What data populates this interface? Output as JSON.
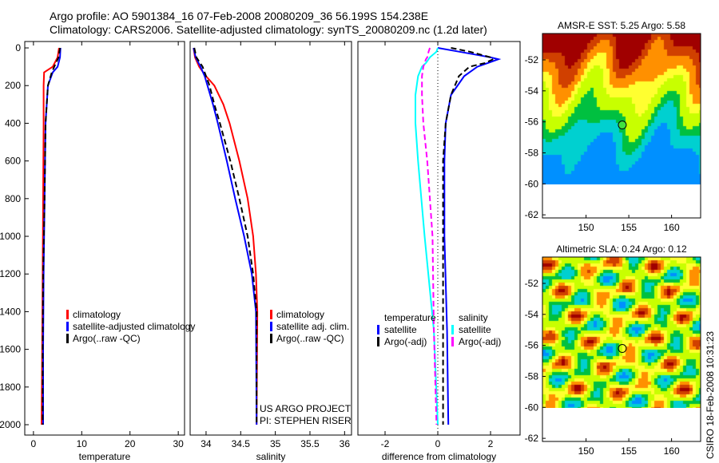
{
  "header": {
    "line1": "Argo profile: AO 5901384_16 07-Feb-2008 20080209_36 56.199S 154.238E",
    "line2": "Climatology: CARS2006. Satellite-adjusted climatology: synTS_20080209.nc (1.2d later)"
  },
  "footer": {
    "stamp": "CSIRO 18-Feb-2008 10:31:23",
    "project": "US ARGO PROJECT",
    "pi": "PI: STEPHEN RISER"
  },
  "chart_data": [
    {
      "type": "line",
      "id": "temp",
      "xlabel": "temperature",
      "xlim": [
        -1.8,
        31.3
      ],
      "ylim": [
        2055,
        -34
      ],
      "xticks": [
        0,
        10,
        20,
        30
      ],
      "yticks": [
        0,
        200,
        400,
        600,
        800,
        1000,
        1200,
        1400,
        1600,
        1800,
        2000
      ],
      "depth": [
        0,
        50,
        100,
        130,
        200,
        400,
        800,
        1200,
        1600,
        2000
      ],
      "series": [
        {
          "name": "climatology",
          "color": "#ff0000",
          "values": [
            5.3,
            5.0,
            4.0,
            2.2,
            2.1,
            2.1,
            2.0,
            1.9,
            1.8,
            1.7
          ]
        },
        {
          "name": "satellite-adjusted climatology",
          "color": "#0000ff",
          "values": [
            5.6,
            5.5,
            5.0,
            4.0,
            3.0,
            2.5,
            2.3,
            2.1,
            2.0,
            2.0
          ]
        },
        {
          "name": "Argo(..raw -QC)",
          "color": "#000000",
          "dash": true,
          "values": [
            5.5,
            5.2,
            4.3,
            3.8,
            3.0,
            2.5,
            2.3,
            2.0,
            1.9,
            1.9
          ]
        }
      ]
    },
    {
      "type": "line",
      "id": "sal",
      "xlabel": "salinity",
      "xlim": [
        33.77,
        36.1
      ],
      "ylim": [
        2055,
        -34
      ],
      "xticks": [
        34,
        34.5,
        35,
        35.5,
        36
      ],
      "depth": [
        0,
        50,
        100,
        150,
        200,
        300,
        400,
        600,
        800,
        1000,
        1200,
        1400,
        2000
      ],
      "series": [
        {
          "name": "climatology",
          "color": "#ff0000",
          "values": [
            33.82,
            33.84,
            33.9,
            34.0,
            34.12,
            34.25,
            34.34,
            34.48,
            34.6,
            34.68,
            34.72,
            34.74,
            34.73
          ]
        },
        {
          "name": "satellite adj. clim.",
          "color": "#0000ff",
          "values": [
            33.82,
            33.85,
            33.92,
            33.98,
            34.02,
            34.1,
            34.17,
            34.3,
            34.42,
            34.55,
            34.66,
            34.72,
            34.73
          ]
        },
        {
          "name": "Argo(..raw -QC)",
          "color": "#000000",
          "dash": true,
          "values": [
            33.83,
            33.86,
            33.95,
            34.0,
            34.05,
            34.12,
            34.2,
            34.35,
            34.48,
            34.6,
            34.68,
            34.73,
            34.73
          ]
        }
      ]
    },
    {
      "type": "line",
      "id": "diff",
      "xlabel": "difference from climatology",
      "xlim": [
        -3.03,
        3.12
      ],
      "ylim": [
        2055,
        -34
      ],
      "xticks": [
        -2,
        0,
        2
      ],
      "depth": [
        0,
        20,
        50,
        60,
        80,
        100,
        150,
        250,
        400,
        600,
        1000,
        1500,
        2000
      ],
      "legend_headers": [
        "temperature",
        "salinity"
      ],
      "series": [
        {
          "name": "satellite",
          "group": "temperature",
          "color": "#0000ff",
          "values": [
            0,
            0.8,
            2.0,
            2.3,
            1.9,
            1.5,
            1.0,
            0.5,
            0.3,
            0.25,
            0.25,
            0.35,
            0.4
          ]
        },
        {
          "name": "Argo(-adj)",
          "group": "temperature",
          "color": "#000000",
          "dash": true,
          "values": [
            0.5,
            1.2,
            2.0,
            2.1,
            1.8,
            1.2,
            0.8,
            0.5,
            0.3,
            0.2,
            0.2,
            0.2,
            0.2
          ]
        },
        {
          "name": "satellite",
          "group": "salinity",
          "color": "#00ffff",
          "values": [
            0,
            -0.05,
            -0.3,
            -0.35,
            -0.45,
            -0.6,
            -0.75,
            -0.85,
            -0.85,
            -0.75,
            -0.5,
            -0.15,
            0.0
          ]
        },
        {
          "name": "Argo(-adj)",
          "group": "salinity",
          "color": "#ff00ff",
          "dash": true,
          "values": [
            -0.3,
            -0.35,
            -0.4,
            -0.45,
            -0.5,
            -0.55,
            -0.6,
            -0.6,
            -0.55,
            -0.4,
            -0.2,
            -0.15,
            -0.05
          ]
        }
      ]
    },
    {
      "type": "heatmap",
      "id": "sst",
      "title": "AMSR-E SST: 5.25 Argo: 5.58",
      "xlim": [
        144.9,
        163.4
      ],
      "ylim": [
        -62.2,
        -50.3
      ],
      "xticks": [
        150,
        155,
        160
      ],
      "yticks": [
        -52,
        -54,
        -56,
        -58,
        -60,
        -62
      ],
      "data_south_limit": -60,
      "marker": [
        154.238,
        -56.199
      ]
    },
    {
      "type": "heatmap",
      "id": "sla",
      "title": "Altimetric SLA: 0.24 Argo: 0.12",
      "xlim": [
        144.9,
        163.4
      ],
      "ylim": [
        -62.2,
        -50.3
      ],
      "xticks": [
        150,
        155,
        160
      ],
      "yticks": [
        -52,
        -54,
        -56,
        -58,
        -60,
        -62
      ],
      "data_south_limit": -60,
      "marker": [
        154.238,
        -56.199
      ]
    }
  ]
}
